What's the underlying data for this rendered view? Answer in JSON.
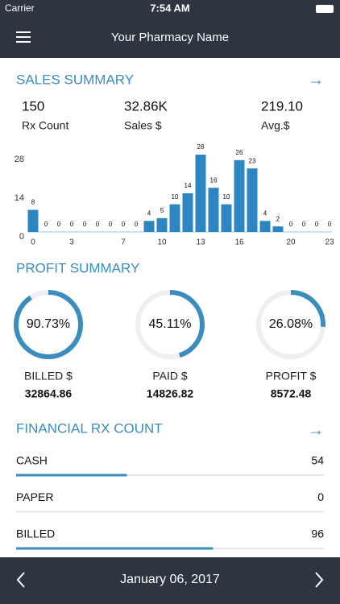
{
  "status": {
    "carrier": "Carrier",
    "time": "7:54 AM"
  },
  "header": {
    "title": "Your Pharmacy Name"
  },
  "sales_summary": {
    "title": "SALES SUMMARY",
    "stats": [
      {
        "value": "150",
        "label": "Rx Count"
      },
      {
        "value": "32.86K",
        "label": "Sales $"
      },
      {
        "value": "219.10",
        "label": "Avg.$"
      }
    ]
  },
  "chart_data": {
    "type": "bar",
    "categories": [
      "0",
      null,
      null,
      "3",
      null,
      null,
      null,
      "7",
      null,
      null,
      "10",
      null,
      null,
      "13",
      null,
      null,
      "16",
      null,
      null,
      null,
      "20",
      null,
      null,
      "23"
    ],
    "values": [
      8,
      0,
      0,
      0,
      0,
      0,
      0,
      0,
      0,
      4,
      5,
      10,
      14,
      28,
      16,
      10,
      26,
      23,
      4,
      2,
      0,
      0,
      0,
      0
    ],
    "color": "#2e86c1",
    "ylim": [
      0,
      28
    ],
    "yticks": [
      0,
      14,
      28
    ]
  },
  "profit_summary": {
    "title": "PROFIT SUMMARY",
    "color": "#3a8dbd",
    "values": [
      90.73,
      45.11,
      26.08
    ],
    "value_labels": [
      "90.73%",
      "45.11%",
      "26.08%"
    ],
    "items": [
      {
        "label": "BILLED $",
        "amount": "32864.86"
      },
      {
        "label": "PAID $",
        "amount": "14826.82"
      },
      {
        "label": "PROFIT $",
        "amount": "8572.48"
      }
    ]
  },
  "financial_rx_count": {
    "title": "FINANCIAL RX COUNT",
    "rows": [
      {
        "label": "CASH",
        "value": 54
      },
      {
        "label": "PAPER",
        "value": 0
      },
      {
        "label": "BILLED",
        "value": 96
      }
    ]
  },
  "footer": {
    "date": "January 06, 2017"
  }
}
